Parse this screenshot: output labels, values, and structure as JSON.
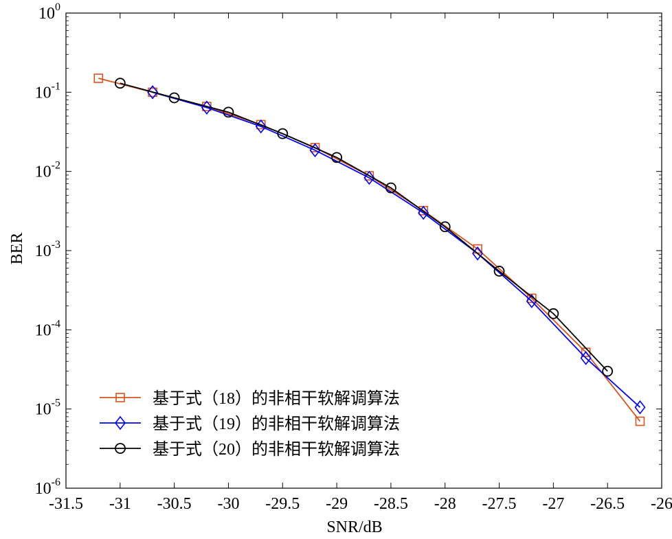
{
  "chart_data": {
    "type": "line",
    "xlabel": "SNR/dB",
    "ylabel": "BER",
    "xscale": "linear",
    "yscale": "log",
    "xlim": [
      -31.5,
      -26
    ],
    "ylim": [
      1e-06,
      1
    ],
    "xticks": [
      -31.5,
      -31,
      -30.5,
      -30,
      -29.5,
      -29,
      -28.5,
      -28,
      -27.5,
      -27,
      -26.5,
      -26
    ],
    "xtick_labels": [
      "-31.5",
      "-31",
      "-30.5",
      "-30",
      "-29.5",
      "-29",
      "-28.5",
      "-28",
      "-27.5",
      "-27",
      "-26.5",
      "-26"
    ],
    "yticks": [
      {
        "value": 1,
        "base": "10",
        "exp": "0"
      },
      {
        "value": 0.1,
        "base": "10",
        "exp": "-1"
      },
      {
        "value": 0.01,
        "base": "10",
        "exp": "-2"
      },
      {
        "value": 0.001,
        "base": "10",
        "exp": "-3"
      },
      {
        "value": 0.0001,
        "base": "10",
        "exp": "-4"
      },
      {
        "value": 1e-05,
        "base": "10",
        "exp": "-5"
      },
      {
        "value": 1e-06,
        "base": "10",
        "exp": "-6"
      }
    ],
    "grid": false,
    "legend_position": "bottom-left",
    "series": [
      {
        "name": "基于式（18）的非相干软解调算法",
        "color": "#d95319",
        "marker": "square",
        "x": [
          -31.2,
          -30.7,
          -30.2,
          -29.7,
          -29.2,
          -28.7,
          -28.2,
          -27.7,
          -27.2,
          -26.7,
          -26.2
        ],
        "y": [
          0.15,
          0.1,
          0.066,
          0.039,
          0.02,
          0.0088,
          0.0032,
          0.00105,
          0.00025,
          5.2e-05,
          7e-06
        ]
      },
      {
        "name": "基于式（19）的非相干软解调算法",
        "color": "#0000ff",
        "marker": "diamond",
        "x": [
          -30.7,
          -30.2,
          -29.7,
          -29.2,
          -28.7,
          -28.2,
          -27.7,
          -27.2,
          -26.7,
          -26.2
        ],
        "y": [
          0.1,
          0.064,
          0.037,
          0.0185,
          0.0083,
          0.003,
          0.00092,
          0.00023,
          4.4e-05,
          1.05e-05
        ]
      },
      {
        "name": "基于式（20）的非相干软解调算法",
        "color": "#000000",
        "marker": "circle",
        "x": [
          -31,
          -30.5,
          -30,
          -29.5,
          -29,
          -28.5,
          -28,
          -27.5,
          -27,
          -26.5
        ],
        "y": [
          0.13,
          0.085,
          0.056,
          0.03,
          0.015,
          0.0062,
          0.002,
          0.00055,
          0.00016,
          3e-05
        ]
      }
    ]
  }
}
